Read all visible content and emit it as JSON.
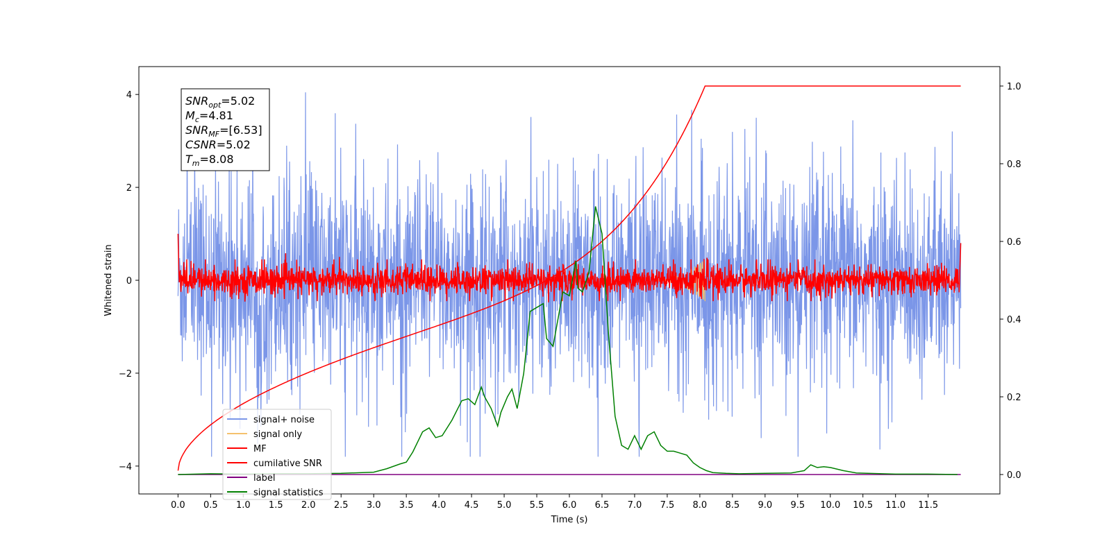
{
  "chart_data": {
    "type": "line",
    "xlabel": "Time (s)",
    "ylabel": "Whitened strain",
    "xlim": [
      -0.6,
      12.6
    ],
    "ylim": [
      -4.6,
      4.6
    ],
    "y2lim": [
      -0.05,
      1.05
    ],
    "x_ticks": [
      0.0,
      0.5,
      1.0,
      1.5,
      2.0,
      2.5,
      3.0,
      3.5,
      4.0,
      4.5,
      5.0,
      5.5,
      6.0,
      6.5,
      7.0,
      7.5,
      8.0,
      8.5,
      9.0,
      9.5,
      10.0,
      10.5,
      11.0,
      11.5
    ],
    "x_tick_labels": [
      "0.0",
      "0.5",
      "1.0",
      "1.5",
      "2.0",
      "2.5",
      "3.0",
      "3.5",
      "4.0",
      "4.5",
      "5.0",
      "5.5",
      "6.0",
      "6.5",
      "7.0",
      "7.5",
      "8.0",
      "8.5",
      "9.0",
      "9.5",
      "10.0",
      "10.5",
      "11.0",
      "11.5"
    ],
    "y_ticks": [
      -4,
      -2,
      0,
      2,
      4
    ],
    "y_tick_labels": [
      "−4",
      "−2",
      "0",
      "2",
      "4"
    ],
    "y2_ticks": [
      0.0,
      0.2,
      0.4,
      0.6,
      0.8,
      1.0
    ],
    "y2_tick_labels": [
      "0.0",
      "0.2",
      "0.4",
      "0.6",
      "0.8",
      "1.0"
    ],
    "legend_position": "lower-left",
    "grid": false,
    "info_box": [
      {
        "base": "SNR",
        "sub": "opt",
        "value": "=5.02"
      },
      {
        "base": "M",
        "sub": "c",
        "value": "=4.81"
      },
      {
        "base": "SNR",
        "sub": "MF",
        "value": "=[6.53]"
      },
      {
        "base": "CSNR",
        "sub": "",
        "value": "=5.02"
      },
      {
        "base": "T",
        "sub": "m",
        "value": "=8.08"
      }
    ],
    "series": [
      {
        "name": "signal+ noise",
        "axis": "left",
        "color": "#7b96e8",
        "t_range": [
          0,
          12
        ],
        "envelope": 2.3,
        "spikes": 3.3
      },
      {
        "name": "signal only",
        "axis": "left",
        "color": "#f5c16c",
        "chirp_end": 8.08,
        "peak_amplitude": 0.45
      },
      {
        "name": "MF",
        "axis": "left",
        "color": "#ff0000",
        "t_range": [
          0,
          12
        ],
        "envelope": 0.35
      },
      {
        "name": "cumilative SNR",
        "axis": "right",
        "color": "#ff0000",
        "x": [
          0.0,
          0.5,
          1.0,
          1.5,
          2.0,
          2.5,
          3.0,
          3.5,
          4.0,
          4.5,
          5.0,
          5.5,
          6.0,
          6.5,
          7.0,
          7.5,
          7.75,
          8.0,
          8.08,
          9.0,
          10.0,
          11.0,
          12.0
        ],
        "y": [
          0.01,
          0.08,
          0.12,
          0.155,
          0.19,
          0.225,
          0.26,
          0.295,
          0.33,
          0.37,
          0.41,
          0.455,
          0.505,
          0.56,
          0.63,
          0.72,
          0.78,
          0.9,
          1.0,
          1.0,
          1.0,
          1.0,
          1.0
        ]
      },
      {
        "name": "label",
        "axis": "right",
        "color": "#800080",
        "x": [
          0.0,
          12.0
        ],
        "y": [
          0.0,
          0.0
        ]
      },
      {
        "name": "signal statistics",
        "axis": "right",
        "color": "#008000",
        "x": [
          0.0,
          0.5,
          1.0,
          1.5,
          2.0,
          2.5,
          3.0,
          3.2,
          3.4,
          3.5,
          3.6,
          3.75,
          3.85,
          3.95,
          4.05,
          4.2,
          4.35,
          4.45,
          4.55,
          4.65,
          4.7,
          4.8,
          4.9,
          4.95,
          5.05,
          5.12,
          5.2,
          5.3,
          5.4,
          5.5,
          5.6,
          5.65,
          5.75,
          5.9,
          6.0,
          6.1,
          6.13,
          6.2,
          6.3,
          6.4,
          6.5,
          6.6,
          6.7,
          6.8,
          6.9,
          7.0,
          7.1,
          7.2,
          7.3,
          7.4,
          7.5,
          7.6,
          7.7,
          7.8,
          7.9,
          8.0,
          8.1,
          8.2,
          8.4,
          8.6,
          9.0,
          9.4,
          9.6,
          9.7,
          9.8,
          9.9,
          10.0,
          10.2,
          10.4,
          10.8,
          11.0,
          11.5,
          11.95
        ],
        "y": [
          0.0,
          0.002,
          0.001,
          0.002,
          0.002,
          0.003,
          0.006,
          0.015,
          0.027,
          0.032,
          0.058,
          0.11,
          0.12,
          0.095,
          0.1,
          0.14,
          0.19,
          0.195,
          0.18,
          0.225,
          0.2,
          0.17,
          0.125,
          0.16,
          0.2,
          0.22,
          0.17,
          0.26,
          0.42,
          0.43,
          0.44,
          0.35,
          0.33,
          0.47,
          0.46,
          0.55,
          0.48,
          0.47,
          0.52,
          0.69,
          0.62,
          0.36,
          0.15,
          0.075,
          0.065,
          0.1,
          0.065,
          0.1,
          0.11,
          0.075,
          0.06,
          0.06,
          0.055,
          0.05,
          0.03,
          0.018,
          0.01,
          0.005,
          0.003,
          0.002,
          0.003,
          0.004,
          0.01,
          0.025,
          0.018,
          0.02,
          0.018,
          0.01,
          0.004,
          0.002,
          0.001,
          0.001,
          0.0
        ]
      }
    ]
  }
}
